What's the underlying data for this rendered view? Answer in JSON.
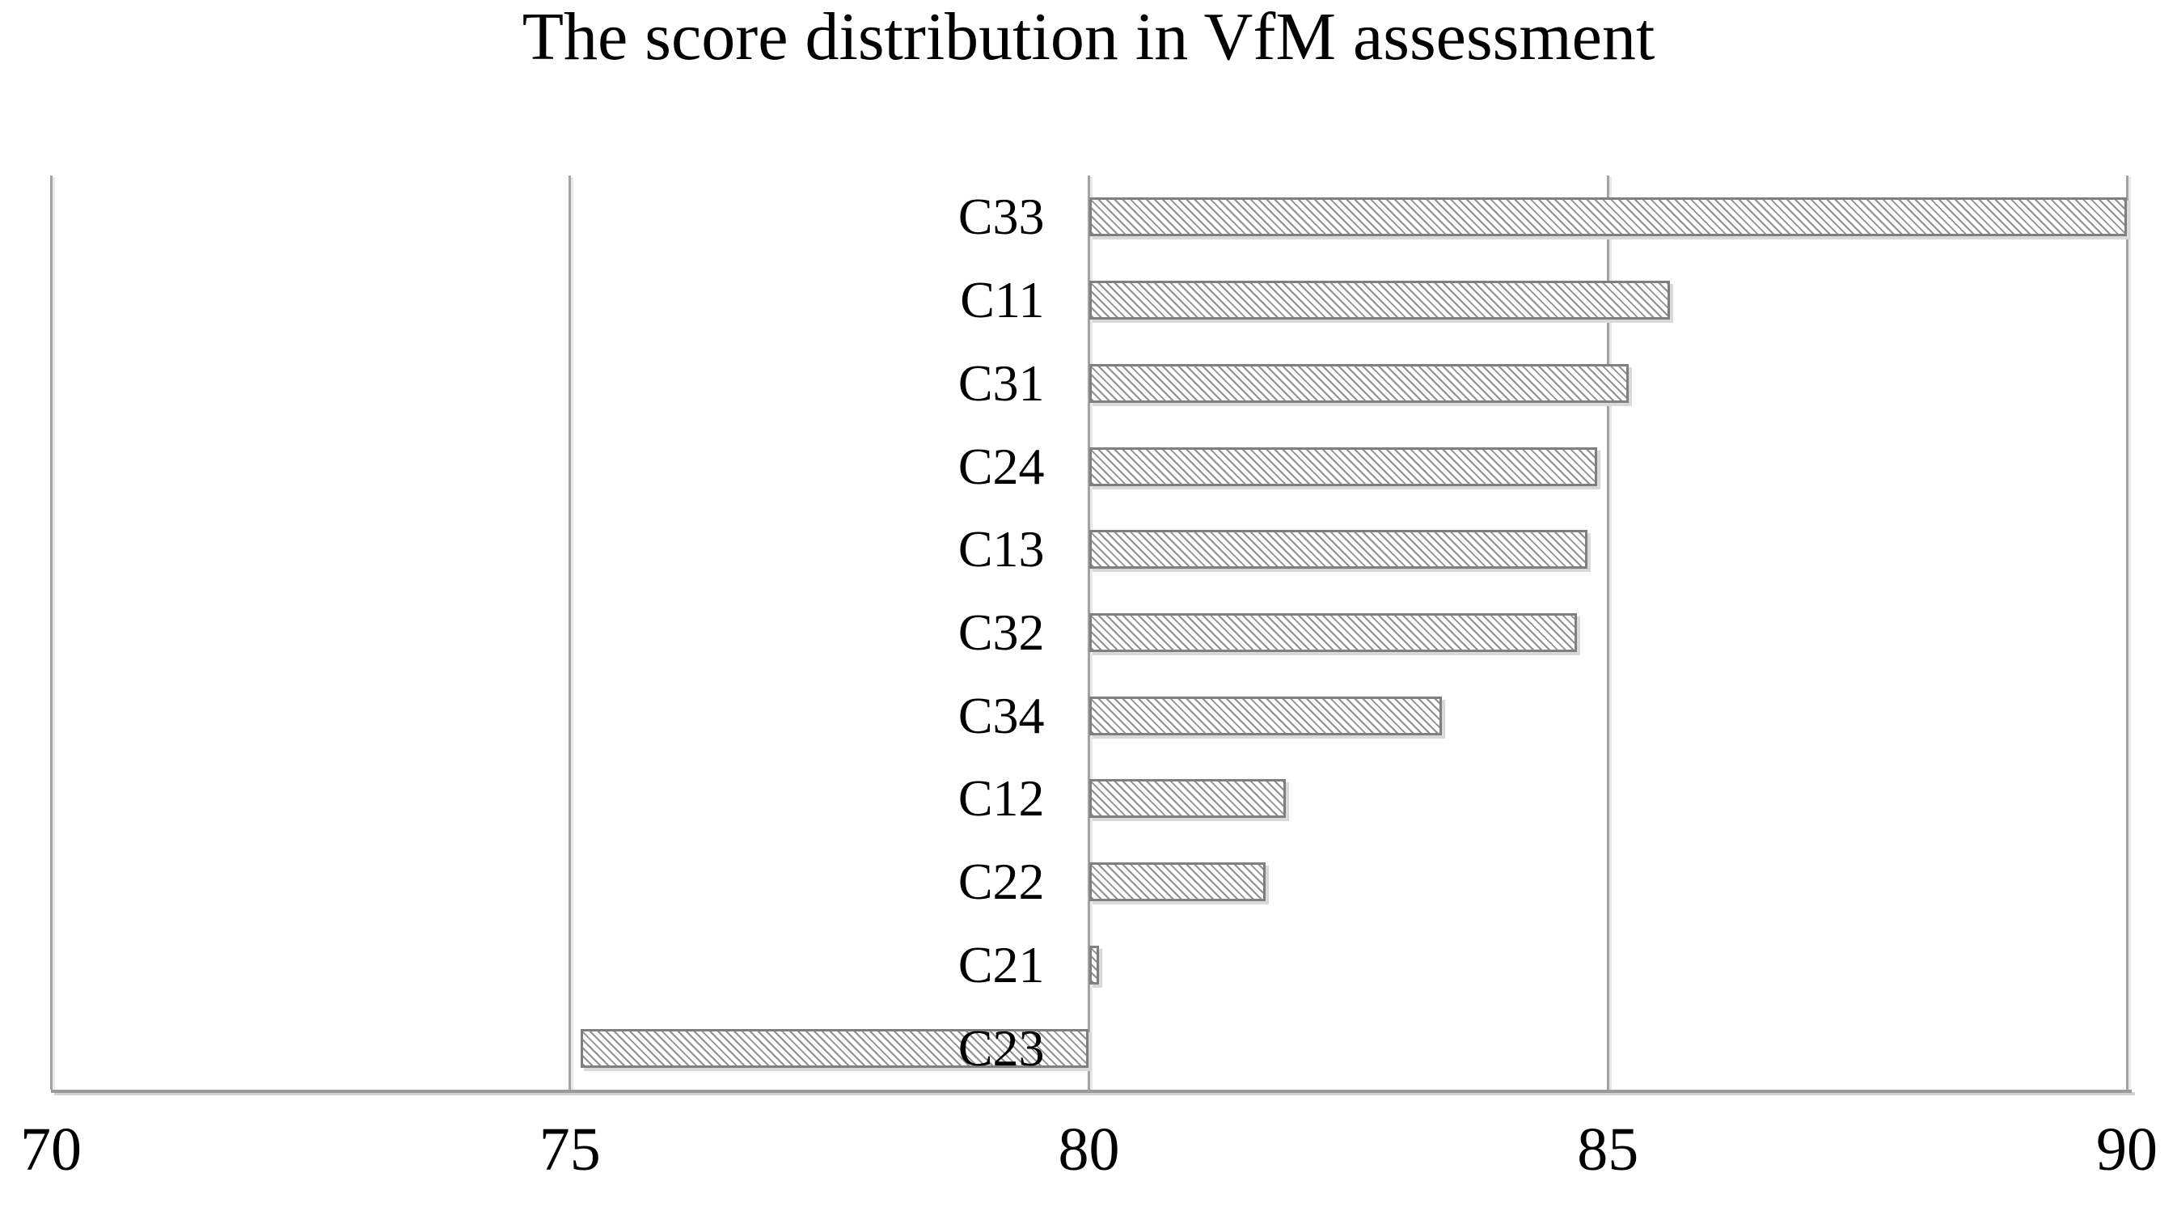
{
  "chart_data": {
    "type": "bar",
    "orientation": "horizontal",
    "title": "The score distribution in VfM assessment",
    "categories": [
      "C33",
      "C11",
      "C31",
      "C24",
      "C13",
      "C32",
      "C34",
      "C12",
      "C22",
      "C21",
      "C23"
    ],
    "values": [
      90,
      85.6,
      85.2,
      84.9,
      84.8,
      84.7,
      83.4,
      81.9,
      81.7,
      80.1,
      75.1
    ],
    "baseline": 80,
    "xlim": [
      70,
      90
    ],
    "xticks": [
      70,
      75,
      80,
      85,
      90
    ],
    "grid": "vertical-gridlines-on",
    "legend": "none",
    "bar_fill": "downward-diagonal-hatch",
    "colors": {
      "background": "#ffffff",
      "text": "#000000",
      "bar_border": "#7f7f7f",
      "hatch_line": "#8f8f8f",
      "gridline": "#a3a3a3",
      "axis_line": "#9a9a9a",
      "shadow": "#d9d9d9"
    }
  }
}
